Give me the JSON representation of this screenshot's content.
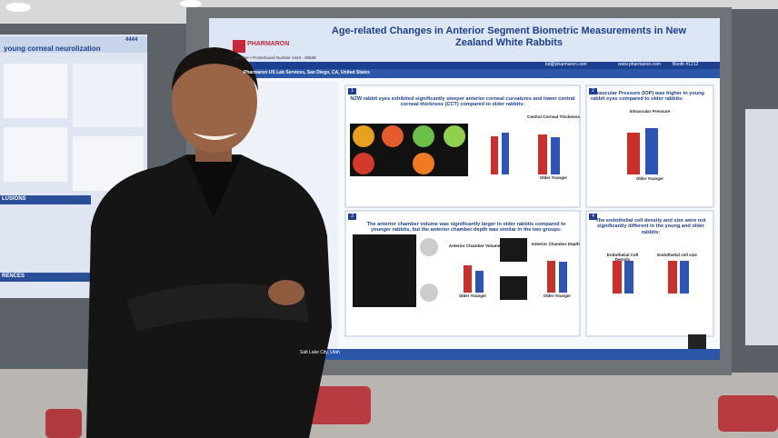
{
  "left_poster": {
    "board_number": "4444",
    "title": "young corneal neurolization",
    "sections": [
      "LUSIONS",
      "RENCES"
    ]
  },
  "poster": {
    "logo": "PHARMARON",
    "board": "Number • Posterboard Number",
    "board_id": "4443 - 90538",
    "title": "Age-related Changes in Anterior Segment Biometric Measurements in New Zealand White Rabbits",
    "email": "bd@pharmaron.com",
    "website": "www.pharmaron.com",
    "booth": "Booth #1212",
    "affiliation": "Pharmaron US Lab Services, San Diego, CA, United States",
    "section_1": {
      "number": "1",
      "heading": "NZW rabbit eyes exhibited significantly steeper anterior corneal curvatures and lower central corneal thickness (CCT) compared to older rabbits:",
      "chart_title": "Central Corneal Thickness",
      "groups": "Older Younger"
    },
    "section_2": {
      "number": "2",
      "heading": "Intraocular Pressure (IOP) was higher in young rabbit eyes compared to older rabbits:",
      "chart_title": "Intraocular Pressure",
      "groups": "Older Younger"
    },
    "section_3": {
      "number": "3",
      "heading": "The anterior chamber volume was significantly larger in older rabbits compared to younger rabbits, but the anterior chamber depth was similar in the two groups:",
      "chart_a": "Anterior Chamber Volume",
      "chart_b": "Anterior Chamber Depth",
      "groups": "Older Younger"
    },
    "section_4": {
      "number": "4",
      "heading": "The endothelial cell density and size were not significantly different in the young and older rabbits:",
      "chart_a": "Endothelial Cell Density",
      "chart_b": "Endothelial cell size"
    },
    "footer": "Salt Lake City, Utah"
  }
}
